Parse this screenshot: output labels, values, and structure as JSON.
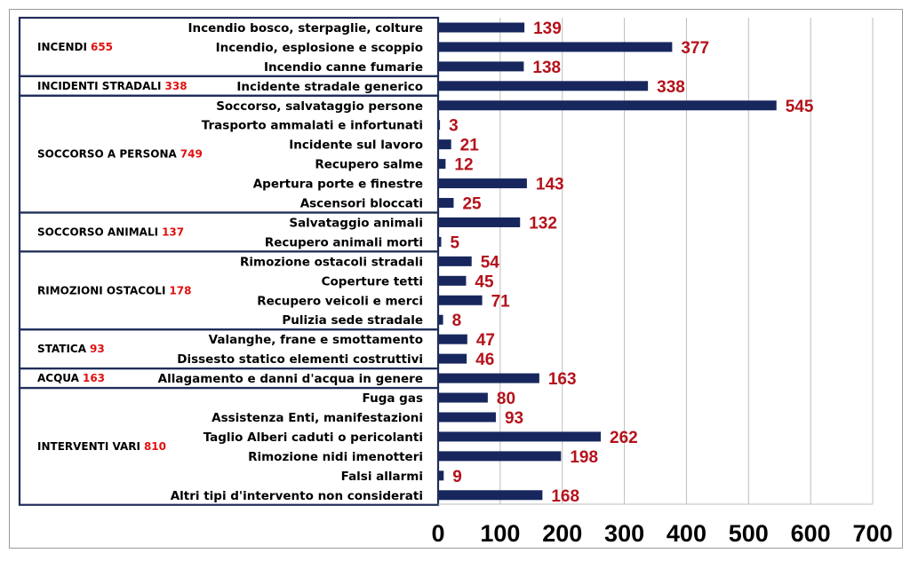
{
  "chart_data": {
    "type": "bar",
    "orientation": "horizontal",
    "xlim": [
      0,
      700
    ],
    "xticks": [
      0,
      100,
      200,
      300,
      400,
      500,
      600,
      700
    ],
    "grid": true,
    "bar_color": "#17275e",
    "value_label_color": "#b5121b",
    "categories": [
      "Incendio bosco, sterpaglie, colture",
      "Incendio, esplosione e scoppio",
      "Incendio canne fumarie",
      "Incidente stradale generico",
      "Soccorso, salvataggio persone",
      "Trasporto ammalati e infortunati",
      "Incidente sul lavoro",
      "Recupero salme",
      "Apertura porte e finestre",
      "Ascensori bloccati",
      "Salvataggio animali",
      "Recupero animali morti",
      "Rimozione ostacoli stradali",
      "Coperture tetti",
      "Recupero veicoli e merci",
      "Pulizia sede stradale",
      "Valanghe, frane e smottamento",
      "Dissesto statico elementi costruttivi",
      "Allagamento e danni d'acqua in genere",
      "Fuga gas",
      "Assistenza Enti, manifestazioni",
      "Taglio Alberi caduti o pericolanti",
      "Rimozione nidi imenotteri",
      "Falsi allarmi",
      "Altri tipi d'intervento non considerati"
    ],
    "values": [
      139,
      377,
      138,
      338,
      545,
      3,
      21,
      12,
      143,
      25,
      132,
      5,
      54,
      45,
      71,
      8,
      47,
      46,
      163,
      80,
      93,
      262,
      198,
      9,
      168
    ],
    "groups": [
      {
        "name": "INCENDI",
        "total": "655",
        "count": 3
      },
      {
        "name": "INCIDENTI STRADALI",
        "total": "338",
        "count": 1
      },
      {
        "name": "SOCCORSO A PERSONA",
        "total": "749",
        "count": 6
      },
      {
        "name": "SOCCORSO ANIMALI",
        "total": "137",
        "count": 2
      },
      {
        "name": "RIMOZIONI OSTACOLI",
        "total": "178",
        "count": 4
      },
      {
        "name": "STATICA",
        "total": "93",
        "count": 2
      },
      {
        "name": "ACQUA",
        "total": "163",
        "count": 1
      },
      {
        "name": "INTERVENTI VARI",
        "total": "810",
        "count": 6
      }
    ]
  }
}
